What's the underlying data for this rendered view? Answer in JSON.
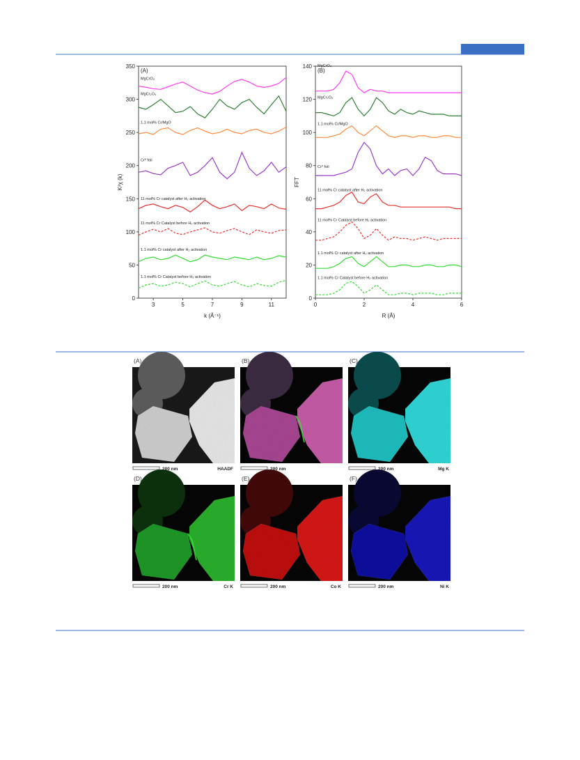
{
  "chart_data": [
    {
      "type": "line",
      "panel_label": "(A)",
      "x_label": "k (Å⁻¹)",
      "y_label": "K²χ (k)",
      "xlim": [
        2,
        12
      ],
      "xticks": [
        3,
        5,
        7,
        9,
        11
      ],
      "ylim": [
        0,
        350
      ],
      "yticks": [
        0,
        50,
        100,
        150,
        200,
        250,
        300,
        350
      ],
      "x": [
        2,
        2.5,
        3,
        3.5,
        4,
        4.5,
        5,
        5.5,
        6,
        6.5,
        7,
        7.5,
        8,
        8.5,
        9,
        9.5,
        10,
        10.5,
        11,
        11.5,
        12
      ],
      "series": [
        {
          "name": "MgCrO₄",
          "color": "#ff3cf0",
          "dashed": false,
          "values": [
            320,
            318,
            316,
            315,
            319,
            323,
            326,
            320,
            314,
            310,
            308,
            312,
            320,
            327,
            330,
            326,
            320,
            318,
            320,
            324,
            333
          ]
        },
        {
          "name": "MgCr₂O₄",
          "color": "#2e8032",
          "dashed": false,
          "values": [
            288,
            285,
            292,
            300,
            290,
            280,
            282,
            289,
            278,
            272,
            285,
            300,
            290,
            285,
            295,
            300,
            288,
            278,
            292,
            305,
            282
          ]
        },
        {
          "name": "1.1 mol% Cr/MgO",
          "color": "#ff8a3c",
          "dashed": false,
          "values": [
            248,
            250,
            247,
            255,
            257,
            250,
            247,
            253,
            257,
            252,
            248,
            250,
            255,
            250,
            248,
            253,
            255,
            250,
            248,
            252,
            258
          ]
        },
        {
          "name": "Cr⁰ foil",
          "color": "#9a3ccc",
          "dashed": false,
          "values": [
            190,
            192,
            188,
            186,
            196,
            200,
            205,
            185,
            190,
            200,
            212,
            190,
            180,
            190,
            220,
            196,
            185,
            192,
            205,
            190,
            198
          ]
        },
        {
          "name": "11 mol% Cr catalyst after H₂ activation",
          "color": "#e8302c",
          "dashed": false,
          "values": [
            135,
            140,
            142,
            138,
            135,
            140,
            137,
            130,
            138,
            148,
            140,
            135,
            138,
            142,
            132,
            140,
            138,
            135,
            142,
            136,
            134
          ]
        },
        {
          "name": "11 mol% Cr Catalyst before H₂ activation",
          "color": "#e8302c",
          "dashed": true,
          "values": [
            95,
            100,
            104,
            100,
            105,
            98,
            96,
            100,
            103,
            106,
            100,
            98,
            102,
            105,
            100,
            96,
            103,
            100,
            98,
            102,
            103
          ]
        },
        {
          "name": "1.1 mol% Cr catalyst after H₂ activation",
          "color": "#33dd33",
          "dashed": false,
          "values": [
            55,
            60,
            62,
            58,
            60,
            65,
            60,
            55,
            58,
            65,
            62,
            60,
            58,
            62,
            60,
            58,
            62,
            58,
            60,
            64,
            62
          ]
        },
        {
          "name": "1.1 mol% Cr Catalyst before H₂ activation",
          "color": "#33dd33",
          "dashed": true,
          "values": [
            15,
            20,
            22,
            18,
            20,
            24,
            22,
            17,
            22,
            26,
            20,
            18,
            22,
            25,
            20,
            17,
            22,
            19,
            18,
            24,
            27
          ]
        }
      ]
    },
    {
      "type": "line",
      "panel_label": "(B)",
      "x_label": "R (Å)",
      "y_label": "FFT",
      "xlim": [
        0,
        6
      ],
      "xticks": [
        0,
        2,
        4,
        6
      ],
      "ylim": [
        0,
        140
      ],
      "yticks": [
        0,
        20,
        40,
        60,
        80,
        100,
        120,
        140
      ],
      "x": [
        0,
        0.25,
        0.5,
        0.75,
        1,
        1.25,
        1.5,
        1.75,
        2,
        2.25,
        2.5,
        2.75,
        3,
        3.25,
        3.5,
        3.75,
        4,
        4.25,
        4.5,
        4.75,
        5,
        5.25,
        5.5,
        5.75,
        6
      ],
      "series": [
        {
          "name": "MgCrO₄",
          "color": "#ff3cf0",
          "dashed": false,
          "values": [
            125,
            125,
            125,
            126,
            130,
            137,
            135,
            127,
            124,
            126,
            125,
            125,
            124,
            124,
            124,
            124,
            124,
            124,
            124,
            124,
            124,
            124,
            124,
            124,
            124
          ]
        },
        {
          "name": "MgCr₂O₄",
          "color": "#2e8032",
          "dashed": false,
          "values": [
            112,
            112,
            111,
            110,
            112,
            118,
            121,
            114,
            110,
            114,
            121,
            118,
            113,
            111,
            114,
            112,
            111,
            113,
            112,
            111,
            111,
            111,
            110,
            110,
            110
          ]
        },
        {
          "name": "1.1 mol% Cr/MgO",
          "color": "#ff8a3c",
          "dashed": false,
          "values": [
            97,
            97,
            97,
            98,
            99,
            102,
            104,
            100,
            98,
            101,
            104,
            101,
            98,
            97,
            98,
            98,
            97,
            98,
            98,
            97,
            97,
            98,
            98,
            97,
            97
          ]
        },
        {
          "name": "Cr⁰ foil",
          "color": "#9a3ccc",
          "dashed": false,
          "values": [
            74,
            74,
            74,
            74,
            75,
            76,
            78,
            88,
            94,
            90,
            80,
            75,
            78,
            74,
            77,
            78,
            74,
            78,
            85,
            83,
            77,
            75,
            75,
            75,
            74
          ]
        },
        {
          "name": "11 mol% Cr catalyst after H₂ activation",
          "color": "#e8302c",
          "dashed": false,
          "values": [
            54,
            54,
            55,
            56,
            58,
            62,
            64,
            58,
            57,
            61,
            63,
            58,
            56,
            56,
            55,
            55,
            55,
            55,
            55,
            55,
            55,
            55,
            55,
            54,
            54
          ]
        },
        {
          "name": "11 mol% Cr Catalyst before H₂ activation",
          "color": "#e8302c",
          "dashed": true,
          "values": [
            35,
            35,
            36,
            37,
            40,
            44,
            46,
            42,
            36,
            38,
            42,
            38,
            35,
            37,
            36,
            36,
            35,
            36,
            37,
            36,
            35,
            36,
            36,
            36,
            36
          ]
        },
        {
          "name": "1.1 mol% Cr catalyst after H₂ activation",
          "color": "#33dd33",
          "dashed": false,
          "values": [
            18,
            18,
            18,
            19,
            21,
            24,
            25,
            21,
            19,
            22,
            25,
            22,
            19,
            19,
            20,
            20,
            19,
            19,
            20,
            20,
            19,
            19,
            20,
            20,
            19
          ]
        },
        {
          "name": "1.1 mol% Cr Catalyst before H₂ activation",
          "color": "#33dd33",
          "dashed": true,
          "values": [
            2,
            2,
            2,
            3,
            5,
            9,
            10,
            7,
            3,
            5,
            8,
            5,
            2,
            2,
            3,
            3,
            2,
            3,
            3,
            3,
            2,
            2,
            3,
            3,
            3
          ]
        }
      ]
    }
  ],
  "figure2": {
    "panels": [
      {
        "label": "(A)",
        "scale": "200 nm",
        "signal": "HAADF"
      },
      {
        "label": "(B)",
        "scale": "200 nm",
        "signal": ""
      },
      {
        "label": "(C)",
        "scale": "200 nm",
        "signal": "Mg K"
      },
      {
        "label": "(D)",
        "scale": "200 nm",
        "signal": "Cr K"
      },
      {
        "label": "(E)",
        "scale": "200 nm",
        "signal": "Co K"
      },
      {
        "label": "(F)",
        "scale": "200 nm",
        "signal": "Ni K"
      }
    ]
  }
}
